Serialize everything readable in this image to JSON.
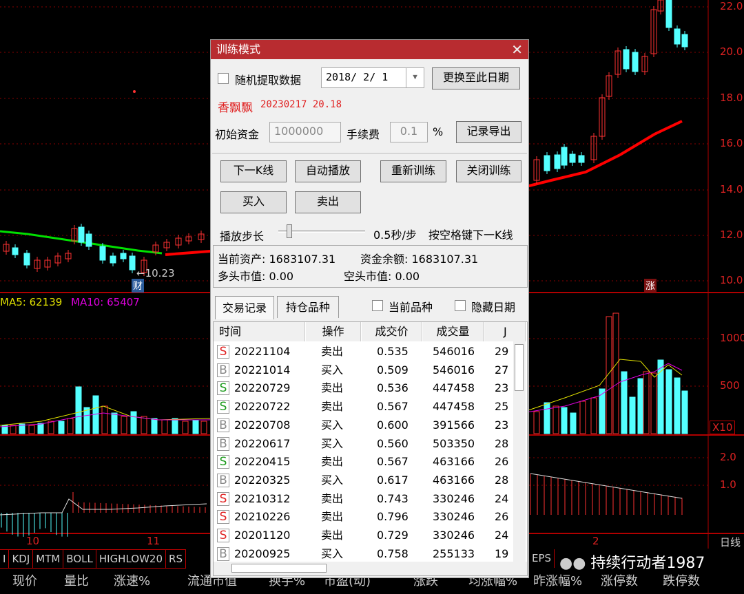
{
  "chart": {
    "price_axis": [
      "22.0",
      "20.0",
      "18.0",
      "16.0",
      "14.0",
      "12.0",
      "10.0"
    ],
    "volume_axis": [
      "1000",
      "500"
    ],
    "volume_multiplier": "X10",
    "macd_axis": [
      "2.0",
      "1.0"
    ],
    "date_labels": [
      "10",
      "11",
      "2"
    ],
    "period_label": "日线",
    "low_marker": "←10.23",
    "finance_badge": "财",
    "limit_up_badge": "涨",
    "ma5_label": "MA5: 62139",
    "ma10_label": "MA10: 65407",
    "colors": {
      "up": "#ff3232",
      "down": "#54ffff",
      "ma_green": "#00e000",
      "ma_red": "#ff0000",
      "ma5": "#e0e000",
      "ma10": "#e000e0",
      "grid": "#b00000"
    }
  },
  "indicator_tabs": [
    "I",
    "KDJ",
    "MTM",
    "BOLL",
    "HIGHLOW20",
    "RS",
    "EPS"
  ],
  "bottom_columns": [
    "现价",
    "量比",
    "涨速%",
    "流通市值",
    "换手%",
    "市盈(动)",
    "涨跌",
    "均涨幅%",
    "昨涨幅%",
    "涨停数",
    "跌停数"
  ],
  "watermark": "持续行动者1987",
  "dialog": {
    "title": "训练模式",
    "random_label": "随机提取数据",
    "date_value": "2018/ 2/ 1",
    "switch_date_button": "更换至此日期",
    "stock_name": "香飘飘",
    "stock_info": "20230217  20.18",
    "initial_capital_label": "初始资金",
    "initial_capital_value": "1000000",
    "fee_label": "手续费",
    "fee_value": "0.1",
    "fee_unit": "%",
    "export_button": "记录导出",
    "next_k_button": "下一K线",
    "autoplay_button": "自动播放",
    "retrain_button": "重新训练",
    "close_training_button": "关闭训练",
    "buy_button": "买入",
    "sell_button": "卖出",
    "step_label": "播放步长",
    "step_value": "0.5秒/步",
    "step_hint": "按空格键下一K线",
    "step_slider_fraction": 0.1,
    "current_assets": "当前资产: 1683107.31",
    "cash_balance": "资金余额: 1683107.31",
    "long_value": "多头市值: 0.00",
    "short_value": "空头市值: 0.00",
    "tab_trades": "交易记录",
    "tab_holdings": "持仓品种",
    "current_symbol_label": "当前品种",
    "hide_date_label": "隐藏日期",
    "columns": [
      "时间",
      "操作",
      "成交价",
      "成交量",
      "J"
    ],
    "rows": [
      {
        "mark": "S",
        "mark_color": "#e02020",
        "date": "20221104",
        "op": "卖出",
        "price": "0.535",
        "qty": "546016",
        "extra": "29"
      },
      {
        "mark": "B",
        "mark_color": "#888888",
        "date": "20221014",
        "op": "买入",
        "price": "0.509",
        "qty": "546016",
        "extra": "27"
      },
      {
        "mark": "S",
        "mark_color": "#1a9a1a",
        "date": "20220729",
        "op": "卖出",
        "price": "0.536",
        "qty": "447458",
        "extra": "23"
      },
      {
        "mark": "S",
        "mark_color": "#1a9a1a",
        "date": "20220722",
        "op": "卖出",
        "price": "0.567",
        "qty": "447458",
        "extra": "25"
      },
      {
        "mark": "B",
        "mark_color": "#888888",
        "date": "20220708",
        "op": "买入",
        "price": "0.600",
        "qty": "391566",
        "extra": "23"
      },
      {
        "mark": "B",
        "mark_color": "#888888",
        "date": "20220617",
        "op": "买入",
        "price": "0.560",
        "qty": "503350",
        "extra": "28"
      },
      {
        "mark": "S",
        "mark_color": "#1a9a1a",
        "date": "20220415",
        "op": "卖出",
        "price": "0.567",
        "qty": "463166",
        "extra": "26"
      },
      {
        "mark": "B",
        "mark_color": "#888888",
        "date": "20220325",
        "op": "买入",
        "price": "0.617",
        "qty": "463166",
        "extra": "28"
      },
      {
        "mark": "S",
        "mark_color": "#e02020",
        "date": "20210312",
        "op": "卖出",
        "price": "0.743",
        "qty": "330246",
        "extra": "24"
      },
      {
        "mark": "S",
        "mark_color": "#e02020",
        "date": "20210226",
        "op": "卖出",
        "price": "0.796",
        "qty": "330246",
        "extra": "26"
      },
      {
        "mark": "S",
        "mark_color": "#e02020",
        "date": "20201120",
        "op": "卖出",
        "price": "0.729",
        "qty": "330246",
        "extra": "24"
      },
      {
        "mark": "B",
        "mark_color": "#888888",
        "date": "20200925",
        "op": "买入",
        "price": "0.758",
        "qty": "255133",
        "extra": "19"
      }
    ]
  }
}
